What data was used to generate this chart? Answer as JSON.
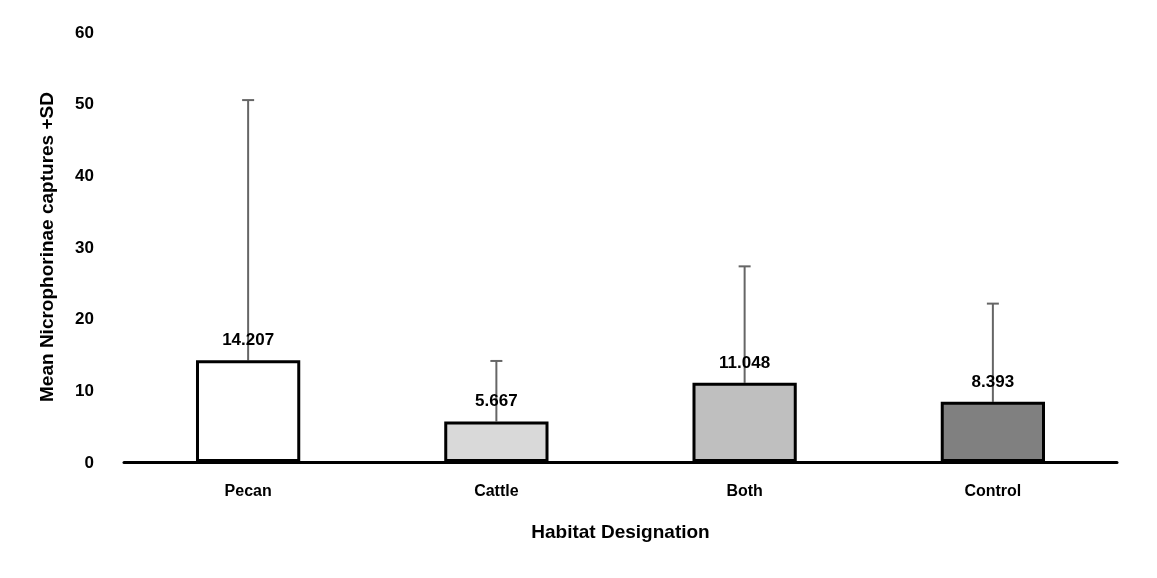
{
  "chart_data": {
    "type": "bar",
    "xlabel": "Habitat Designation",
    "ylabel": "Mean Nicrophorinae captures +SD",
    "categories": [
      "Pecan",
      "Cattle",
      "Both",
      "Control"
    ],
    "values": [
      14.207,
      5.667,
      11.048,
      8.393
    ],
    "colors": [
      "#ffffff",
      "#d9d9d9",
      "#bfbfbf",
      "#808080"
    ],
    "errors": [
      [
        14.207,
        50.5
      ],
      [
        5.667,
        14.1
      ],
      [
        11.048,
        27.3
      ],
      [
        8.393,
        22.1
      ]
    ],
    "ylim": [
      0,
      60
    ],
    "yticks": [
      0,
      10,
      20,
      30,
      40,
      50,
      60
    ],
    "data_labels": true,
    "grid": false
  }
}
